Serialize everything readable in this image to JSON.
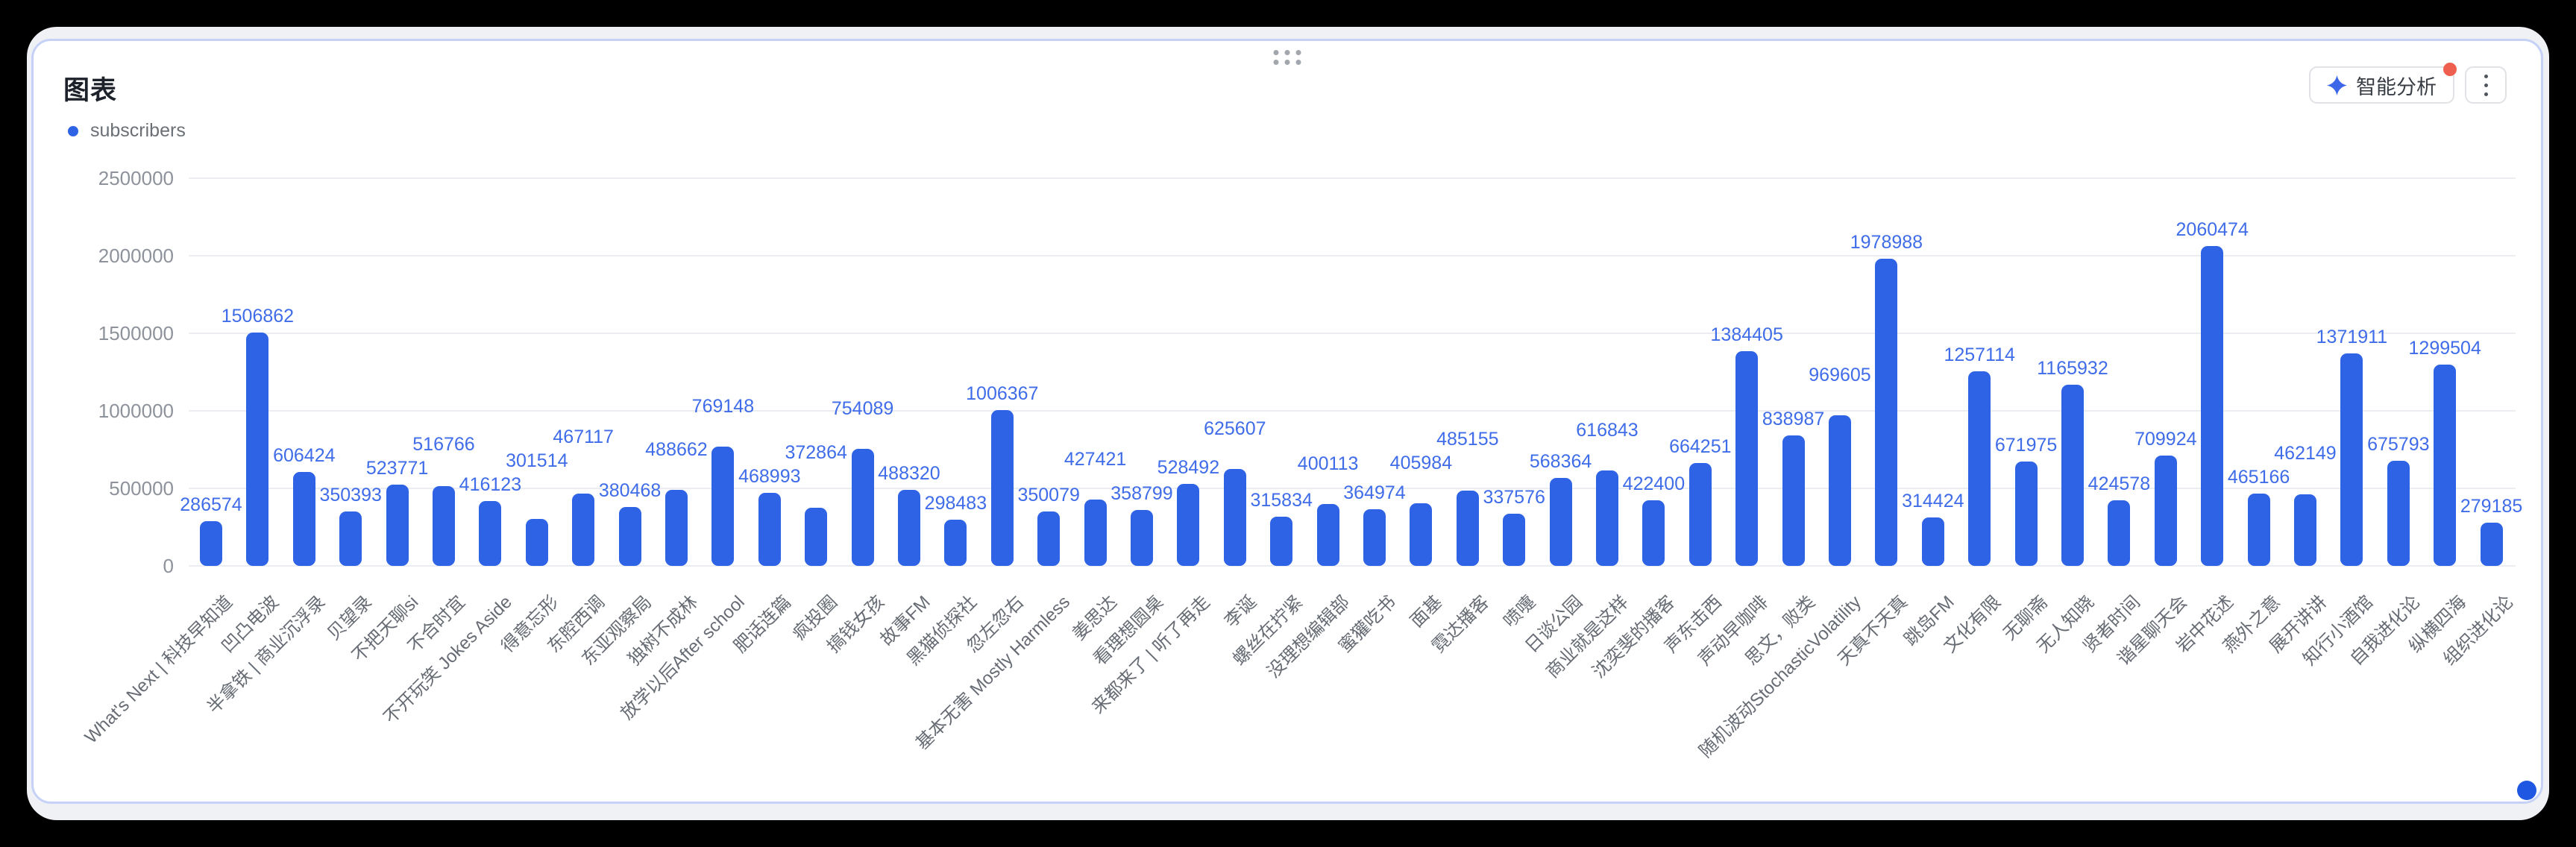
{
  "header": {
    "title": "图表",
    "ai_button_label": "智能分析",
    "ai_button_has_red_badge": true
  },
  "legend": {
    "series_label": "subscribers"
  },
  "colors": {
    "bar": "#2f63e6",
    "value_label": "#3f6ce8",
    "block_border": "#c5d1f6",
    "badge": "#ee5f50",
    "sparkle": "#3e66e8"
  },
  "chart_data": {
    "type": "bar",
    "title": "图表",
    "series_name": "subscribers",
    "legend_position": "top-left",
    "grid": true,
    "ylim": [
      0,
      2500000
    ],
    "y_ticks": [
      2500000,
      2000000,
      1500000,
      1000000,
      500000,
      0
    ],
    "xlabel": "",
    "ylabel": "",
    "categories": [
      "What's Next | 科技早知道",
      "凹凸电波",
      "半拿铁 | 商业沉浮录",
      "贝望录",
      "不把天聊si",
      "不合时宜",
      "不开玩笑 Jokes Aside",
      "得意忘形",
      "东腔西调",
      "东亚观察局",
      "独树不成林",
      "放学以后After school",
      "肥话连篇",
      "疯投圈",
      "搞钱女孩",
      "故事FM",
      "黑猫侦探社",
      "忽左忽右",
      "基本无害 Mostly Harmless",
      "姜思达",
      "看理想圆桌",
      "来都来了 | 听了再走",
      "李诞",
      "螺丝在拧紧",
      "没理想编辑部",
      "蜜獾吃书",
      "面基",
      "霓达播客",
      "喷嚏",
      "日谈公园",
      "商业就是这样",
      "沈奕斐的播客",
      "声东击西",
      "声动早咖啡",
      "思文，败类",
      "随机波动StochasticVolatility",
      "天真不天真",
      "跳岛FM",
      "文化有限",
      "无聊斋",
      "无人知晓",
      "贤者时间",
      "谐星聊天会",
      "岩中花述",
      "燕外之意",
      "展开讲讲",
      "知行小酒馆",
      "自我进化论",
      "纵横四海",
      "组织进化论"
    ],
    "values": [
      286574,
      1506862,
      606424,
      350393,
      523771,
      516766,
      416123,
      301514,
      467117,
      380468,
      488662,
      769148,
      468993,
      372864,
      754089,
      488320,
      298483,
      1006367,
      350079,
      427421,
      358799,
      528492,
      625607,
      315834,
      400113,
      364974,
      405984,
      485155,
      337576,
      568364,
      616843,
      422400,
      664251,
      1384405,
      838987,
      969605,
      1978988,
      314424,
      1257114,
      671975,
      1165932,
      424578,
      709924,
      2060474,
      465166,
      462149,
      1371911,
      675793,
      1299504,
      279185
    ]
  }
}
